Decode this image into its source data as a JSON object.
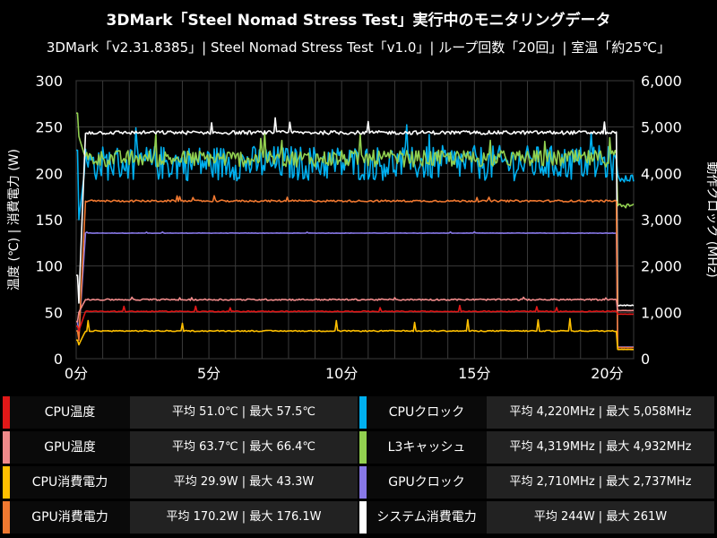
{
  "header": {
    "title": "3DMark「Steel Nomad Stress Test」実行中のモニタリングデータ",
    "subtitle": "3DMark「v2.31.8385」| Steel Nomad Stress Test「v1.0」| ループ回数「20回」| 室温「約25℃」"
  },
  "chart_data": {
    "type": "line",
    "ylabel": "温度 (℃) | 消費電力 (W)",
    "y2label": "動作クロック (MHz)",
    "ylim": [
      0,
      300
    ],
    "y2lim": [
      0,
      6000
    ],
    "yticks": [
      "0",
      "50",
      "100",
      "150",
      "200",
      "250",
      "300"
    ],
    "y2ticks": [
      "0",
      "1,000",
      "2,000",
      "3,000",
      "4,000",
      "5,000",
      "6,000"
    ],
    "xticks": [
      "0分",
      "5分",
      "10分",
      "15分",
      "20分"
    ],
    "xlim_minutes": [
      0,
      21
    ],
    "grid": true,
    "series": [
      {
        "name": "CPU温度",
        "axis": "left",
        "color": "#e01818",
        "idle": [
          35,
          30
        ],
        "load": 51.0,
        "peak": 57.5,
        "noise": 0.5,
        "after": 48
      },
      {
        "name": "GPU温度",
        "axis": "left",
        "color": "#f08a8a",
        "idle": [
          40,
          50
        ],
        "load": 63.7,
        "peak": 66.4,
        "noise": 0.8,
        "after": 52
      },
      {
        "name": "CPU消費電力",
        "axis": "left",
        "color": "#ffc000",
        "idle": [
          20,
          15
        ],
        "load": 29.9,
        "peak": 43.3,
        "noise": 0.6,
        "after": 10
      },
      {
        "name": "GPU消費電力",
        "axis": "left",
        "color": "#f07830",
        "idle": [
          30,
          20
        ],
        "load": 170.2,
        "peak": 176.1,
        "noise": 1.0,
        "after": 12
      },
      {
        "name": "CPUクロック",
        "axis": "right",
        "color": "#00b0f0",
        "idle": [
          4500,
          3000
        ],
        "load": 4220,
        "peak": 5058,
        "noise": 380,
        "after": 3900
      },
      {
        "name": "L3キャッシュ",
        "axis": "right",
        "color": "#92d050",
        "idle": [
          5300,
          4800
        ],
        "load": 4319,
        "peak": 4932,
        "noise": 180,
        "after": 3300
      },
      {
        "name": "GPUクロック",
        "axis": "right",
        "color": "#8878e8",
        "idle": [
          800,
          500
        ],
        "load": 2710,
        "peak": 2737,
        "noise": 4,
        "after": 250
      },
      {
        "name": "システム消費電力",
        "axis": "right",
        "color": "#ffffff",
        "idle": [
          1800,
          1200
        ],
        "load": 4880,
        "peak": 5220,
        "noise": 40,
        "after": 1150
      }
    ]
  },
  "legend": [
    {
      "name": "CPU温度",
      "value": "平均 51.0℃ | 最大 57.5℃",
      "color": "#e01818"
    },
    {
      "name": "CPUクロック",
      "value": "平均 4,220MHz | 最大 5,058MHz",
      "color": "#00b0f0"
    },
    {
      "name": "GPU温度",
      "value": "平均 63.7℃ | 最大 66.4℃",
      "color": "#f08a8a"
    },
    {
      "name": "L3キャッシュ",
      "value": "平均 4,319MHz | 最大 4,932MHz",
      "color": "#92d050"
    },
    {
      "name": "CPU消費電力",
      "value": "平均 29.9W | 最大 43.3W",
      "color": "#ffc000"
    },
    {
      "name": "GPUクロック",
      "value": "平均 2,710MHz | 最大 2,737MHz",
      "color": "#8878e8"
    },
    {
      "name": "GPU消費電力",
      "value": "平均 170.2W | 最大 176.1W",
      "color": "#f07830"
    },
    {
      "name": "システム消費電力",
      "value": "平均 244W | 最大 261W",
      "color": "#ffffff"
    }
  ]
}
